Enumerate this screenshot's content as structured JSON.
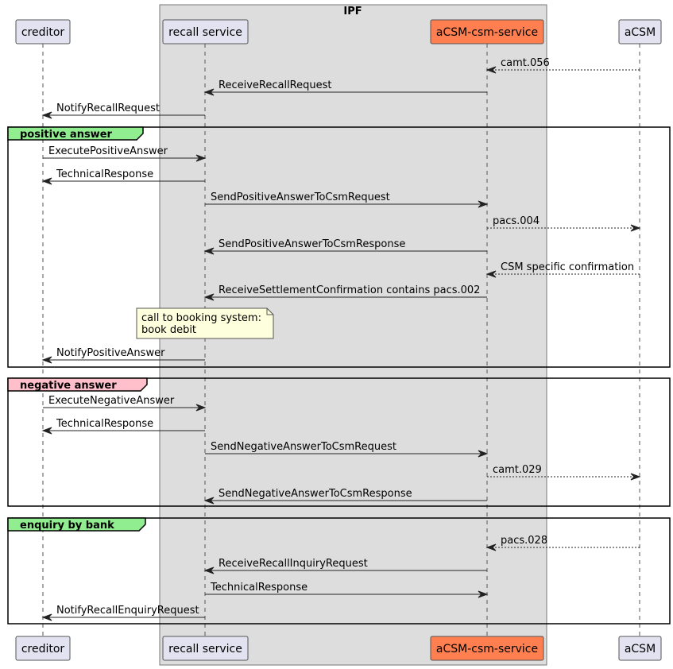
{
  "box": {
    "title": "IPF",
    "color": "#DDDDDD"
  },
  "participants": [
    {
      "id": "creditor",
      "label": "creditor",
      "color": "#E2E2F0"
    },
    {
      "id": "recall",
      "label": "recall service",
      "color": "#E2E2F0"
    },
    {
      "id": "csm",
      "label": "aCSM-csm-service",
      "color": "#FF7F50"
    },
    {
      "id": "acsm",
      "label": "aCSM",
      "color": "#E2E2F0"
    }
  ],
  "messages": [
    {
      "from": "acsm",
      "to": "csm",
      "label": "camt.056",
      "dashed": true
    },
    {
      "from": "csm",
      "to": "recall",
      "label": "ReceiveRecallRequest",
      "dashed": false
    },
    {
      "from": "recall",
      "to": "creditor",
      "label": "NotifyRecallRequest",
      "dashed": false
    },
    {
      "from": "creditor",
      "to": "recall",
      "label": "ExecutePositiveAnswer",
      "dashed": false
    },
    {
      "from": "recall",
      "to": "creditor",
      "label": "TechnicalResponse",
      "dashed": false
    },
    {
      "from": "recall",
      "to": "csm",
      "label": "SendPositiveAnswerToCsmRequest",
      "dashed": false
    },
    {
      "from": "csm",
      "to": "acsm",
      "label": "pacs.004",
      "dashed": true
    },
    {
      "from": "csm",
      "to": "recall",
      "label": "SendPositiveAnswerToCsmResponse",
      "dashed": false
    },
    {
      "from": "acsm",
      "to": "csm",
      "label": "CSM specific confirmation",
      "dashed": true
    },
    {
      "from": "csm",
      "to": "recall",
      "label": "ReceiveSettlementConfirmation contains pacs.002",
      "dashed": false
    },
    {
      "from": "recall",
      "to": "creditor",
      "label": "NotifyPositiveAnswer",
      "dashed": false
    },
    {
      "from": "creditor",
      "to": "recall",
      "label": "ExecuteNegativeAnswer",
      "dashed": false
    },
    {
      "from": "recall",
      "to": "creditor",
      "label": "TechnicalResponse",
      "dashed": false
    },
    {
      "from": "recall",
      "to": "csm",
      "label": "SendNegativeAnswerToCsmRequest",
      "dashed": false
    },
    {
      "from": "csm",
      "to": "acsm",
      "label": "camt.029",
      "dashed": true
    },
    {
      "from": "csm",
      "to": "recall",
      "label": "SendNegativeAnswerToCsmResponse",
      "dashed": false
    },
    {
      "from": "acsm",
      "to": "csm",
      "label": "pacs.028",
      "dashed": true
    },
    {
      "from": "csm",
      "to": "recall",
      "label": "ReceiveRecallInquiryRequest",
      "dashed": false
    },
    {
      "from": "recall",
      "to": "csm",
      "label": "TechnicalResponse",
      "dashed": false
    },
    {
      "from": "recall",
      "to": "creditor",
      "label": "NotifyRecallEnquiryRequest",
      "dashed": false
    }
  ],
  "groups": [
    {
      "label": "positive answer",
      "color": "#90EE90"
    },
    {
      "label": "negative answer",
      "color": "#FFC0CB"
    },
    {
      "label": "enquiry by bank",
      "color": "#90EE90"
    }
  ],
  "note": {
    "lines": [
      "call to booking system:",
      "book debit"
    ],
    "color": "#FEFFDD"
  }
}
